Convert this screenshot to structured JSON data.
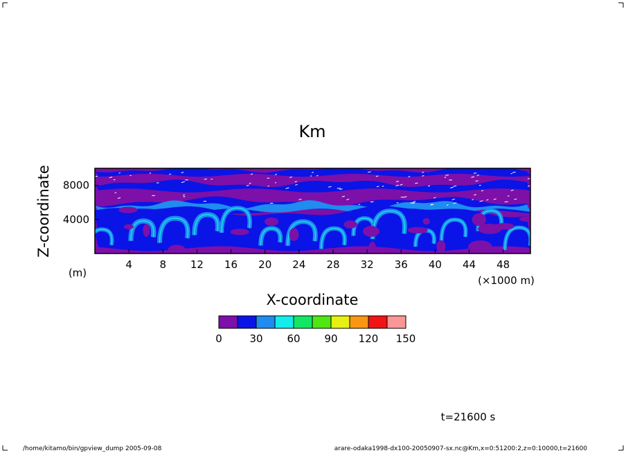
{
  "chart_data": {
    "type": "heatmap",
    "title": "Km",
    "xlabel": "X-coordinate",
    "ylabel": "Z-coordinate",
    "x_unit": "(×1000 m)",
    "y_unit": "(m)",
    "xlim": [
      0,
      51.2
    ],
    "ylim": [
      0,
      10000
    ],
    "x_ticks": [
      4,
      8,
      12,
      16,
      20,
      24,
      28,
      32,
      36,
      40,
      44,
      48
    ],
    "y_ticks": [
      4000,
      8000
    ],
    "colorbar": {
      "levels": [
        0,
        15,
        30,
        45,
        60,
        75,
        90,
        105,
        120,
        135,
        150
      ],
      "tick_labels": [
        "0",
        "30",
        "60",
        "90",
        "120",
        "150"
      ],
      "colors": [
        "#7d10a8",
        "#0a14e6",
        "#1e8cf0",
        "#14ecec",
        "#14e664",
        "#50e614",
        "#e6f014",
        "#fa9614",
        "#f01414",
        "#fa9696"
      ]
    },
    "time_label": "t=21600 s"
  },
  "footer": {
    "left": "/home/kitamo/bin/gpview_dump  2005-09-08",
    "right": "arare-odaka1998-dx100-20050907-sx.nc@Km,x=0:51200:2,z=0:10000,t=21600"
  }
}
